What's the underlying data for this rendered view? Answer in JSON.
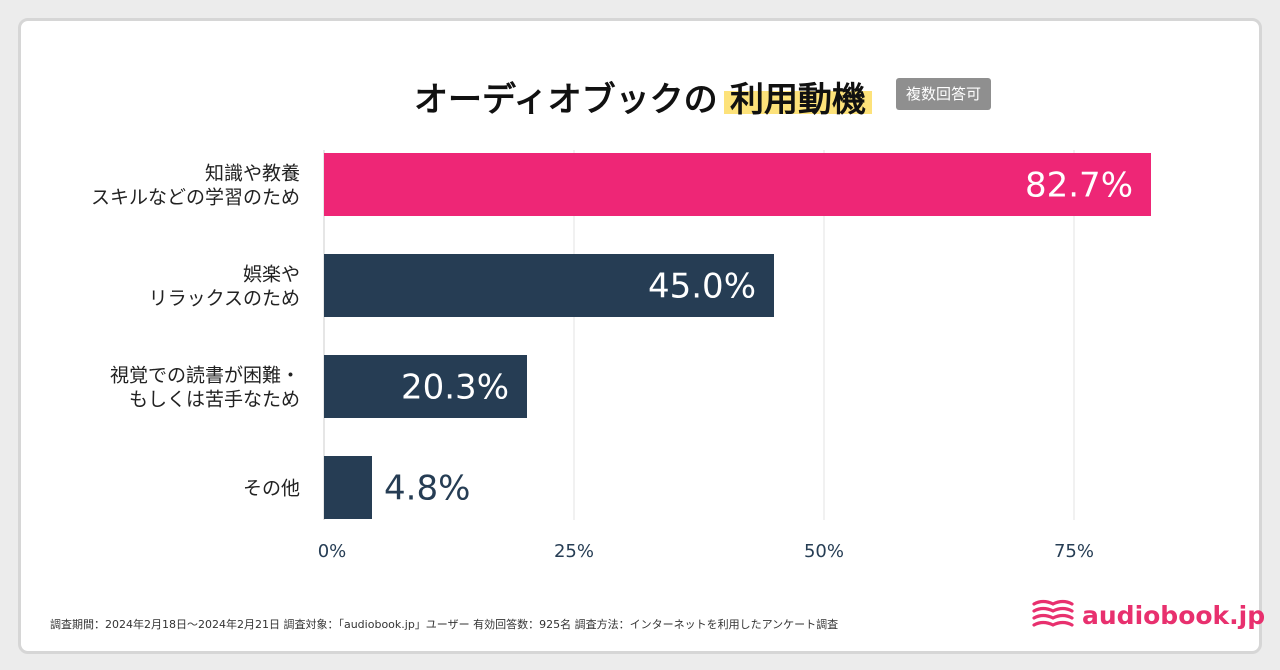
{
  "title": {
    "main": "オーディオブックの",
    "highlight": "利用動機",
    "badge": "複数回答可"
  },
  "chart_data": {
    "type": "bar",
    "orientation": "horizontal",
    "title": "オーディオブックの 利用動機",
    "categories": [
      [
        "知識や教養",
        "スキルなどの学習のため"
      ],
      [
        "娯楽や",
        "リラックスのため"
      ],
      [
        "視覚での読書が困難・",
        "もしくは苦手なため"
      ],
      [
        "その他"
      ]
    ],
    "values": [
      82.7,
      45.0,
      20.3,
      4.8
    ],
    "value_labels": [
      "82.7%",
      "45.0%",
      "20.3%",
      "4.8%"
    ],
    "xlim": [
      0,
      100
    ],
    "xticks": [
      0,
      25,
      50,
      75
    ],
    "xtick_labels": [
      "0%",
      "25%",
      "50%",
      "75%"
    ],
    "xlabel": "",
    "ylabel": "",
    "grid": true,
    "colors": {
      "highlight": "#ee2676",
      "default": "#263d54",
      "grid": "#e3e3e3",
      "axis": "#cccccc",
      "tick_label": "#263d54",
      "dark_label": "#263d54"
    }
  },
  "footer": {
    "note": "調査期間：2024年2月18日～2024年2月21日  調査対象：「audiobook.jp」ユーザー      有効回答数：925名  調査方法：インターネットを利用したアンケート調査"
  },
  "logo": {
    "text": "audiobook.jp",
    "icon": "book-waves-icon",
    "color": "#e8306e"
  }
}
